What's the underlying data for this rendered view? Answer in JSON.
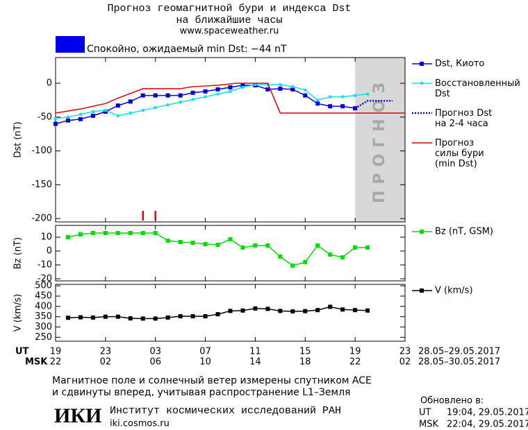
{
  "header": {
    "title": "Прогноз геомагнитной бури и индекса Dst",
    "subtitle": "на ближайшие часы",
    "url": "www.spaceweather.ru"
  },
  "status": {
    "text": "Спокойно, ожидаемый min Dst: −44 nT",
    "color": "#0000ee"
  },
  "axis_rows": {
    "ut": "UT",
    "msk": "MSK",
    "ut_range": "28.05–29.05.2017",
    "msk_range": "28.05–30.05.2017"
  },
  "footer": {
    "note1": "Магнитное поле и солнечный ветер измерены спутником ACE",
    "note2": "и сдвинуты вперед, учитывая распространение L1–Земля",
    "logo": "ИКИ",
    "institute": "Институт космических исследований РАН",
    "site": "iki.cosmos.ru",
    "updated": "Обновлено в:",
    "ut_label": "UT",
    "ut_time": "19:04, 29.05.2017",
    "msk_label": "MSK",
    "msk_time": "22:04, 29.05.2017"
  },
  "chart_data": [
    {
      "type": "line",
      "ylabel": "Dst (nT)",
      "xlim": [
        0,
        28
      ],
      "ylim": [
        -205,
        38
      ],
      "yticks": [
        0,
        -50,
        -100,
        -150,
        -200
      ],
      "forecast_region": {
        "label": "ПРОГНОЗ",
        "xlim": [
          24,
          28
        ],
        "color": "#d8d8d8"
      },
      "markers": {
        "x": [
          7,
          8
        ],
        "color": "#ee0000"
      },
      "series": [
        {
          "name": "Dst, Киото",
          "color": "#0000dd",
          "marker": "square",
          "x": [
            0,
            1,
            2,
            3,
            4,
            5,
            6,
            7,
            8,
            9,
            10,
            11,
            12,
            13,
            14,
            15,
            16,
            17,
            18,
            19,
            20,
            21,
            22,
            23,
            24
          ],
          "values": [
            -60,
            -55,
            -53,
            -48,
            -42,
            -33,
            -27,
            -18,
            -18,
            -18,
            -18,
            -14,
            -12,
            -9,
            -6,
            -3,
            -3,
            -9,
            -8,
            -9,
            -18,
            -30,
            -34,
            -34,
            -37
          ]
        },
        {
          "name": "Восстановленный\nDst",
          "color": "#11e0f0",
          "marker": "square-small",
          "x": [
            0,
            1,
            2,
            3,
            4,
            5,
            6,
            7,
            8,
            9,
            10,
            11,
            12,
            13,
            14,
            15,
            16,
            17,
            18,
            19,
            20,
            21,
            22,
            23,
            24,
            25
          ],
          "values": [
            -52,
            -50,
            -46,
            -42,
            -40,
            -48,
            -44,
            -40,
            -36,
            -32,
            -28,
            -24,
            -20,
            -16,
            -12,
            -6,
            -2,
            -2,
            -2,
            -5,
            -10,
            -25,
            -20,
            -20,
            -18,
            -16
          ]
        },
        {
          "name": "Прогноз Dst\nна 2-4 часа",
          "color": "#0000dd",
          "dash": "dotted",
          "x": [
            24,
            25,
            27
          ],
          "values": [
            -37,
            -26,
            -26
          ]
        },
        {
          "name": "Прогноз\nсилы бури\n(min Dst)",
          "color": "#dd0000",
          "x": [
            0,
            2,
            4,
            5,
            7,
            10,
            11,
            13,
            14.5,
            17,
            18,
            28
          ],
          "values": [
            -44,
            -38,
            -30,
            -22,
            -8,
            -8,
            -5,
            -3,
            0,
            0,
            -44,
            -44
          ]
        }
      ]
    },
    {
      "type": "line",
      "ylabel": "Bz (nT)",
      "xlim": [
        0,
        28
      ],
      "ylim": [
        -21.5,
        18.5
      ],
      "yticks": [
        10,
        0,
        -10,
        -20
      ],
      "series": [
        {
          "name": "Bz (nT, GSM)",
          "color": "#00dd00",
          "marker": "square",
          "x": [
            1,
            2,
            3,
            4,
            5,
            6,
            7,
            8,
            9,
            10,
            11,
            12,
            13,
            14,
            15,
            16,
            17,
            18,
            19,
            20,
            21,
            22,
            23,
            24,
            25
          ],
          "values": [
            10,
            12,
            13,
            13,
            13,
            13,
            13,
            13,
            7.5,
            6.5,
            6,
            5,
            4.5,
            8.5,
            2.5,
            4,
            4,
            -4,
            -10.5,
            -8,
            4,
            -2.5,
            -4.5,
            2.5,
            2.5
          ]
        }
      ]
    },
    {
      "type": "line",
      "ylabel": "V (km/s)",
      "xlim": [
        0,
        28
      ],
      "ylim": [
        231,
        507
      ],
      "yticks": [
        250,
        300,
        350,
        400,
        450,
        500
      ],
      "xticks": [
        {
          "value": 0,
          "label": "19"
        },
        {
          "value": 4,
          "label": "23"
        },
        {
          "value": 8,
          "label": "03"
        },
        {
          "value": 12,
          "label": "07"
        },
        {
          "value": 16,
          "label": "11"
        },
        {
          "value": 20,
          "label": "15"
        },
        {
          "value": 24,
          "label": "19"
        },
        {
          "value": 28,
          "label": "23"
        }
      ],
      "xticks_msk": [
        {
          "value": 0,
          "label": "22"
        },
        {
          "value": 4,
          "label": "02"
        },
        {
          "value": 8,
          "label": "06"
        },
        {
          "value": 12,
          "label": "10"
        },
        {
          "value": 16,
          "label": "14"
        },
        {
          "value": 20,
          "label": "18"
        },
        {
          "value": 24,
          "label": "22"
        },
        {
          "value": 28,
          "label": "02"
        }
      ],
      "series": [
        {
          "name": "V (km/s)",
          "color": "#000000",
          "marker": "square",
          "x": [
            1,
            2,
            3,
            4,
            5,
            6,
            7,
            8,
            9,
            10,
            11,
            12,
            13,
            14,
            15,
            16,
            17,
            18,
            19,
            20,
            21,
            22,
            23,
            24,
            25
          ],
          "values": [
            345,
            347,
            346,
            350,
            350,
            342,
            341,
            341,
            346,
            352,
            352,
            352,
            362,
            378,
            380,
            390,
            388,
            378,
            376,
            377,
            382,
            398,
            385,
            382,
            380
          ]
        }
      ]
    }
  ]
}
